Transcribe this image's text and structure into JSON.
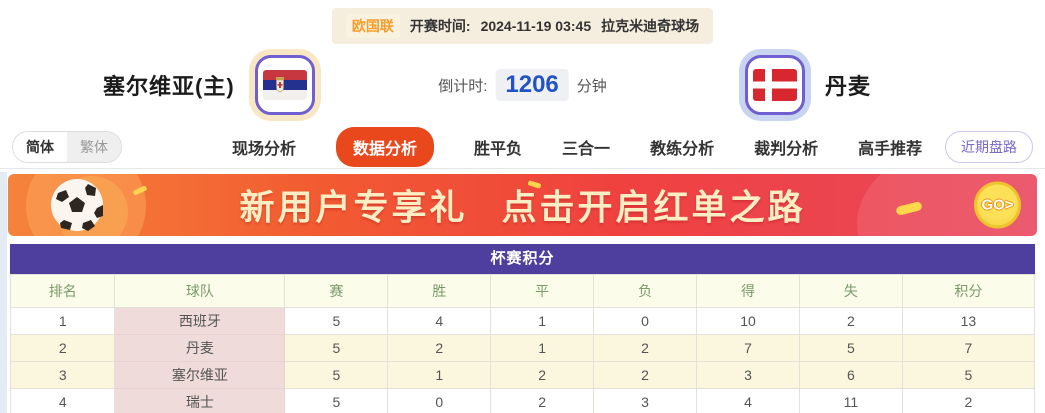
{
  "top_bar": {
    "league": "欧国联",
    "kickoff_label": "开赛时间:",
    "kickoff_time": "2024-11-19 03:45",
    "venue": "拉克米迪奇球场"
  },
  "match_header": {
    "home_team": "塞尔维亚(主)",
    "away_team": "丹麦",
    "home_flag_icon": "serbia-flag",
    "away_flag_icon": "denmark-flag",
    "countdown_label": "倒计时:",
    "countdown_value": "1206",
    "countdown_unit": "分钟"
  },
  "nav": {
    "lang": {
      "simplified": "简体",
      "traditional": "繁体",
      "active": "简体"
    },
    "tabs": [
      {
        "label": "现场分析",
        "active": false
      },
      {
        "label": "数据分析",
        "active": true
      },
      {
        "label": "胜平负",
        "active": false
      },
      {
        "label": "三合一",
        "active": false
      },
      {
        "label": "教练分析",
        "active": false
      },
      {
        "label": "裁判分析",
        "active": false
      },
      {
        "label": "高手推荐",
        "active": false
      }
    ],
    "recent_button": "近期盘路"
  },
  "banner": {
    "text_part1": "新用户专享礼",
    "text_part2": "点击开启红单之路",
    "go_label": "GO>"
  },
  "table": {
    "title": "杯赛积分",
    "headers": [
      "排名",
      "球队",
      "赛",
      "胜",
      "平",
      "负",
      "得",
      "失",
      "积分"
    ],
    "rows": [
      {
        "rank": "1",
        "team": "西班牙",
        "values": [
          "5",
          "4",
          "1",
          "0",
          "10",
          "2",
          "13"
        ],
        "highlight": false
      },
      {
        "rank": "2",
        "team": "丹麦",
        "values": [
          "5",
          "2",
          "1",
          "2",
          "7",
          "5",
          "7"
        ],
        "highlight": true
      },
      {
        "rank": "3",
        "team": "塞尔维亚",
        "values": [
          "5",
          "1",
          "2",
          "2",
          "3",
          "6",
          "5"
        ],
        "highlight": true
      },
      {
        "rank": "4",
        "team": "瑞士",
        "values": [
          "5",
          "0",
          "2",
          "3",
          "4",
          "11",
          "2"
        ],
        "highlight": false
      }
    ]
  },
  "colors": {
    "accent_tab": "#E8481C",
    "table_title_purple": "#4E3F9E",
    "header_row_bg": "#FBFCEA",
    "header_row_text": "#7A9A68",
    "team_col_pink": "#F0DBDB",
    "highlight_row_yellow": "#FBF7DF",
    "countdown_blue": "#2153C5",
    "league_orange": "#F59E2D",
    "banner_gradient_start": "#F5833B",
    "banner_gradient_end": "#E9485E",
    "banner_text_cream": "#FBEDC4",
    "go_coin_yellow": "#F3CE35",
    "recent_btn_purple": "#7A68C9"
  }
}
